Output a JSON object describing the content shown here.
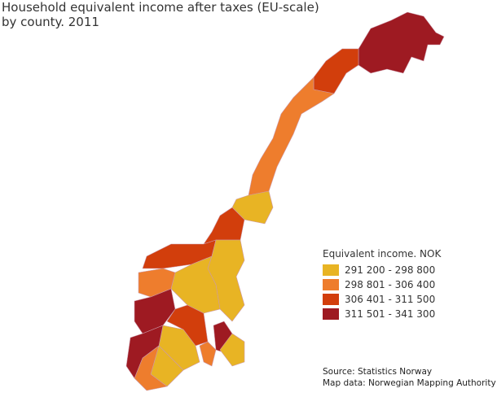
{
  "title": [
    "Household equivalent income after taxes (EU-scale)",
    "by county. 2011"
  ],
  "legend": {
    "title": "Equivalent income. NOK",
    "items": [
      {
        "label": "291 200 - 298 800",
        "color": "#e8b424"
      },
      {
        "label": "298 801 - 306 400",
        "color": "#ee7d2d"
      },
      {
        "label": "306 401 - 311 500",
        "color": "#d23e0c"
      },
      {
        "label": "311 501 - 341 300",
        "color": "#9e1a22"
      }
    ]
  },
  "source": [
    "Source: Statistics Norway",
    "Map data: Norwegian Mapping Authority"
  ]
}
